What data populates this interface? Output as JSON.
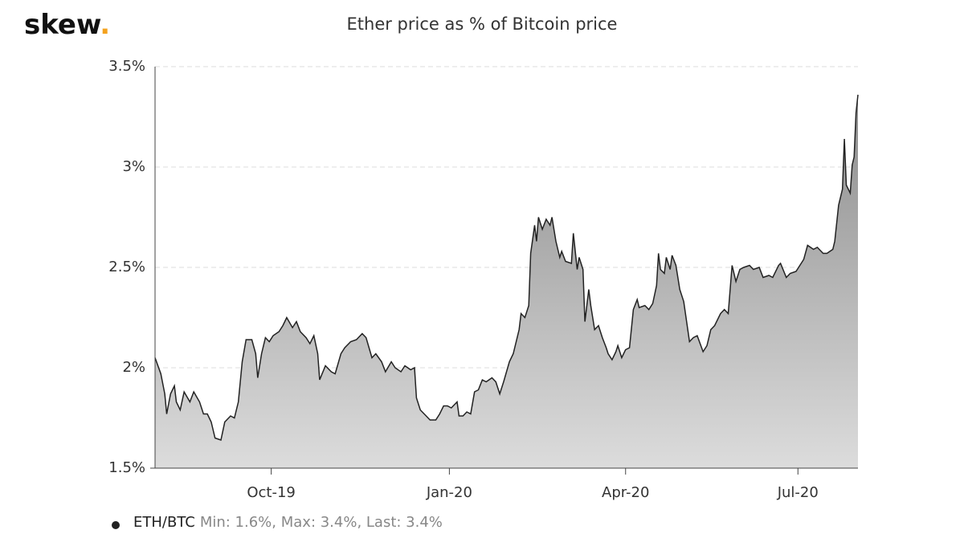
{
  "logo": "skew",
  "logo_dot": ".",
  "chart_data": {
    "type": "area",
    "title": "Ether price as % of Bitcoin price",
    "x": [
      0,
      3,
      5,
      6,
      8,
      10,
      11,
      13,
      15,
      18,
      20,
      23,
      25,
      27,
      29,
      31,
      34,
      36,
      39,
      41,
      43,
      45,
      47,
      50,
      52,
      53,
      55,
      57,
      59,
      61,
      64,
      66,
      68,
      71,
      73,
      75,
      78,
      80,
      82,
      84,
      85,
      88,
      91,
      93,
      96,
      98,
      101,
      104,
      107,
      109,
      112,
      114,
      117,
      119,
      122,
      124,
      127,
      129,
      132,
      134,
      135,
      137,
      140,
      142,
      145,
      147,
      149,
      151,
      153,
      156,
      157,
      159,
      161,
      163,
      165,
      167,
      169,
      171,
      174,
      176,
      178,
      180,
      183,
      185,
      188,
      189,
      191,
      193,
      194,
      196,
      197,
      198,
      200,
      202,
      204,
      205,
      207,
      209,
      210,
      212,
      215,
      216,
      218,
      219,
      221,
      222,
      224,
      225,
      227,
      229,
      231,
      233,
      234,
      236,
      238,
      239,
      241,
      243,
      245,
      247,
      249,
      250,
      253,
      255,
      257,
      259,
      260,
      261,
      263,
      264,
      266,
      267,
      269,
      271,
      273,
      276,
      278,
      280,
      283,
      285,
      287,
      289,
      292,
      294,
      296,
      298,
      300,
      302,
      304,
      307,
      309,
      312,
      314,
      317,
      319,
      322,
      323,
      326,
      328,
      331,
      333,
      335,
      337,
      340,
      342,
      345,
      347,
      350,
      351,
      353,
      355,
      356,
      357,
      359,
      360,
      361,
      362,
      363
    ],
    "series": [
      {
        "name": "ETH/BTC",
        "color": "#222222",
        "values": [
          2.05,
          1.97,
          1.87,
          1.77,
          1.87,
          1.91,
          1.83,
          1.79,
          1.88,
          1.83,
          1.88,
          1.83,
          1.77,
          1.77,
          1.73,
          1.65,
          1.64,
          1.73,
          1.76,
          1.75,
          1.83,
          2.03,
          2.14,
          2.14,
          2.07,
          1.95,
          2.07,
          2.15,
          2.13,
          2.16,
          2.18,
          2.21,
          2.25,
          2.2,
          2.23,
          2.18,
          2.15,
          2.12,
          2.16,
          2.07,
          1.94,
          2.01,
          1.98,
          1.97,
          2.07,
          2.1,
          2.13,
          2.14,
          2.17,
          2.15,
          2.05,
          2.07,
          2.03,
          1.98,
          2.03,
          2.0,
          1.98,
          2.01,
          1.99,
          2.0,
          1.85,
          1.79,
          1.76,
          1.74,
          1.74,
          1.77,
          1.81,
          1.81,
          1.8,
          1.83,
          1.76,
          1.76,
          1.78,
          1.77,
          1.88,
          1.89,
          1.94,
          1.93,
          1.95,
          1.93,
          1.87,
          1.93,
          2.03,
          2.07,
          2.19,
          2.27,
          2.25,
          2.31,
          2.57,
          2.71,
          2.63,
          2.75,
          2.69,
          2.74,
          2.71,
          2.75,
          2.63,
          2.55,
          2.58,
          2.53,
          2.52,
          2.67,
          2.49,
          2.55,
          2.49,
          2.23,
          2.39,
          2.31,
          2.19,
          2.21,
          2.15,
          2.1,
          2.07,
          2.04,
          2.08,
          2.11,
          2.05,
          2.09,
          2.1,
          2.29,
          2.34,
          2.3,
          2.31,
          2.29,
          2.32,
          2.41,
          2.57,
          2.49,
          2.47,
          2.55,
          2.49,
          2.56,
          2.51,
          2.39,
          2.33,
          2.13,
          2.15,
          2.16,
          2.08,
          2.11,
          2.19,
          2.21,
          2.27,
          2.29,
          2.27,
          2.51,
          2.43,
          2.49,
          2.5,
          2.51,
          2.49,
          2.5,
          2.45,
          2.46,
          2.45,
          2.51,
          2.52,
          2.45,
          2.47,
          2.48,
          2.51,
          2.54,
          2.61,
          2.59,
          2.6,
          2.57,
          2.57,
          2.59,
          2.63,
          2.81,
          2.89,
          3.14,
          2.91,
          2.87,
          3.01,
          3.05,
          3.27,
          3.36
        ]
      }
    ],
    "legend_stats": "Min: 1.6%, Max: 3.4%, Last: 3.4%",
    "xlim": [
      0,
      363
    ],
    "xticks": [
      {
        "value": 60,
        "label": "Oct-19"
      },
      {
        "value": 152,
        "label": "Jan-20"
      },
      {
        "value": 243,
        "label": "Apr-20"
      },
      {
        "value": 332,
        "label": "Jul-20"
      }
    ],
    "ylim": [
      1.5,
      3.5
    ],
    "yticks": [
      {
        "value": 1.5,
        "label": "1.5%"
      },
      {
        "value": 2,
        "label": "2%"
      },
      {
        "value": 2.5,
        "label": "2.5%"
      },
      {
        "value": 3,
        "label": "3%"
      },
      {
        "value": 3.5,
        "label": "3.5%"
      }
    ],
    "grid": true
  }
}
